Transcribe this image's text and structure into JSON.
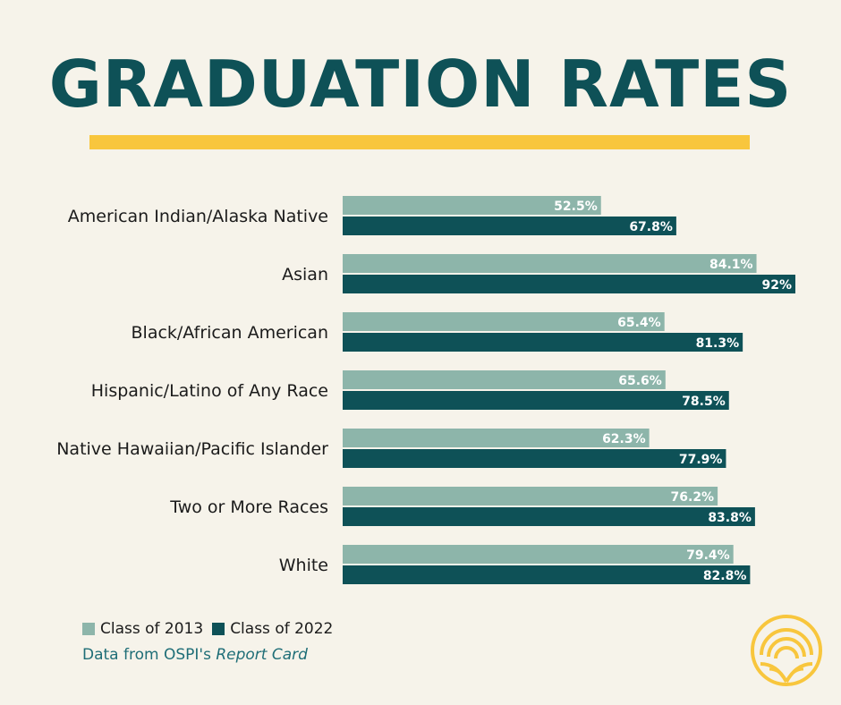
{
  "chart_data": {
    "type": "bar",
    "orientation": "horizontal",
    "title": "GRADUATION RATES",
    "categories": [
      "American Indian/Alaska Native",
      "Asian",
      "Black/African American",
      "Hispanic/Latino of Any Race",
      "Native Hawaiian/Pacific Islander",
      "Two or More Races",
      "White"
    ],
    "series": [
      {
        "name": "Class of 2013",
        "color": "#8db5aa",
        "values": [
          52.5,
          84.1,
          65.4,
          65.6,
          62.3,
          76.2,
          79.4
        ],
        "labels": [
          "52.5%",
          "84.1%",
          "65.4%",
          "65.6%",
          "62.3%",
          "76.2%",
          "79.4%"
        ]
      },
      {
        "name": "Class of 2022",
        "color": "#0e5157",
        "values": [
          67.8,
          92,
          81.3,
          78.5,
          77.9,
          83.8,
          82.8
        ],
        "labels": [
          "67.8%",
          "92%",
          "81.3%",
          "78.5%",
          "77.9%",
          "83.8%",
          "82.8%"
        ]
      }
    ],
    "xlim": [
      0,
      100
    ],
    "grid": false,
    "legend_position": "bottom-left"
  },
  "source": {
    "prefix": "Data from OSPI's ",
    "italic": "Report Card"
  },
  "colors": {
    "accent": "#f8c63d",
    "title": "#0e5157",
    "source_text": "#1f6e77",
    "background": "#f6f3ea"
  },
  "logo": {
    "icon": "wheat-sunrise-icon"
  }
}
